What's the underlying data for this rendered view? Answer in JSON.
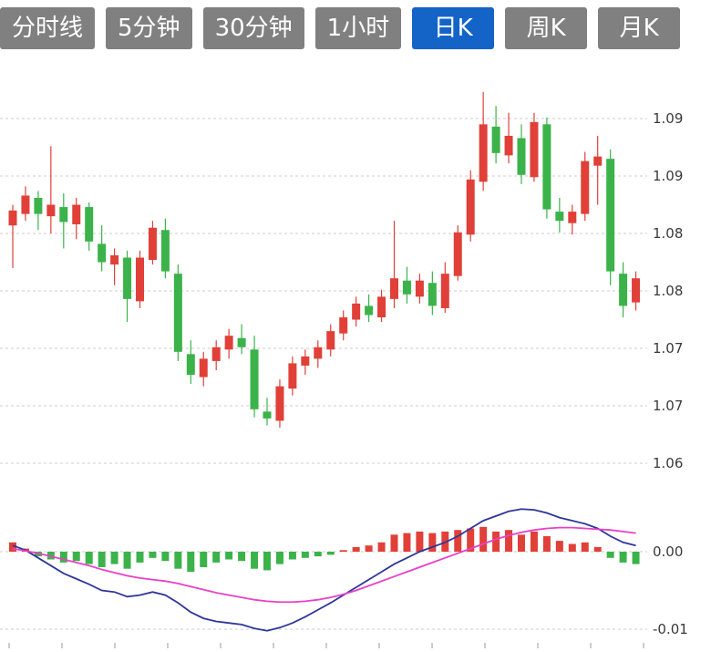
{
  "tabs": {
    "items": [
      {
        "label": "分时线",
        "active": false
      },
      {
        "label": "5分钟",
        "active": false
      },
      {
        "label": "30分钟",
        "active": false
      },
      {
        "label": "1小时",
        "active": false
      },
      {
        "label": "日K",
        "active": true
      },
      {
        "label": "周K",
        "active": false
      },
      {
        "label": "月K",
        "active": false
      }
    ]
  },
  "colors": {
    "tab_bg": "#808080",
    "tab_active_bg": "#1464c8",
    "tab_text": "#ffffff",
    "up": "#e04038",
    "down": "#3bb34a",
    "dif_line": "#2f3699",
    "dea_line": "#e840c8",
    "grid": "#cccccc",
    "axis_text": "#3a3a3a",
    "background": "#ffffff"
  },
  "chart_data": {
    "type": "candlestick",
    "indicator": "MACD",
    "title": "",
    "xlabel": "",
    "ylabel": "",
    "grid": true,
    "legend": "none",
    "candle_columns": [
      "open",
      "high",
      "low",
      "close"
    ],
    "candles": [
      [
        1.0832,
        1.085,
        1.0795,
        1.0845
      ],
      [
        1.0842,
        1.0866,
        1.0836,
        1.0858
      ],
      [
        1.0856,
        1.0862,
        1.0828,
        1.0842
      ],
      [
        1.084,
        1.0901,
        1.0825,
        1.085
      ],
      [
        1.0848,
        1.086,
        1.0812,
        1.0835
      ],
      [
        1.0833,
        1.0856,
        1.082,
        1.085
      ],
      [
        1.0848,
        1.0852,
        1.081,
        1.0818
      ],
      [
        1.0816,
        1.0832,
        1.0792,
        1.08
      ],
      [
        1.0798,
        1.0812,
        1.078,
        1.0806
      ],
      [
        1.0804,
        1.081,
        1.0748,
        1.0768
      ],
      [
        1.0766,
        1.081,
        1.076,
        1.0804
      ],
      [
        1.0802,
        1.0836,
        1.0798,
        1.083
      ],
      [
        1.0828,
        1.0838,
        1.0786,
        1.0792
      ],
      [
        1.079,
        1.0798,
        1.0714,
        1.0722
      ],
      [
        1.072,
        1.0732,
        1.0694,
        1.0702
      ],
      [
        1.07,
        1.0722,
        1.0692,
        1.0716
      ],
      [
        1.0714,
        1.0732,
        1.0706,
        1.0726
      ],
      [
        1.0724,
        1.0742,
        1.0716,
        1.0736
      ],
      [
        1.0734,
        1.0746,
        1.072,
        1.0726
      ],
      [
        1.0724,
        1.0736,
        1.0665,
        1.0672
      ],
      [
        1.067,
        1.0682,
        1.0658,
        1.0664
      ],
      [
        1.0662,
        1.0698,
        1.0656,
        1.0692
      ],
      [
        1.069,
        1.0718,
        1.0684,
        1.0712
      ],
      [
        1.071,
        1.0724,
        1.0702,
        1.0718
      ],
      [
        1.0716,
        1.0732,
        1.0708,
        1.0726
      ],
      [
        1.0724,
        1.0746,
        1.0718,
        1.074
      ],
      [
        1.0738,
        1.0758,
        1.0732,
        1.0752
      ],
      [
        1.075,
        1.077,
        1.0744,
        1.0764
      ],
      [
        1.0762,
        1.0772,
        1.0748,
        1.0754
      ],
      [
        1.0752,
        1.0776,
        1.0748,
        1.077
      ],
      [
        1.0768,
        1.0836,
        1.076,
        1.0786
      ],
      [
        1.0784,
        1.0796,
        1.0764,
        1.0772
      ],
      [
        1.077,
        1.079,
        1.0764,
        1.0784
      ],
      [
        1.0782,
        1.0792,
        1.0754,
        1.0762
      ],
      [
        1.076,
        1.08,
        1.0756,
        1.079
      ],
      [
        1.0788,
        1.0832,
        1.0784,
        1.0826
      ],
      [
        1.0824,
        1.088,
        1.0818,
        1.0872
      ],
      [
        1.087,
        1.0948,
        1.0862,
        1.092
      ],
      [
        1.0918,
        1.0936,
        1.0886,
        1.0895
      ],
      [
        1.0893,
        1.093,
        1.0886,
        1.091
      ],
      [
        1.0908,
        1.092,
        1.0868,
        1.0876
      ],
      [
        1.0874,
        1.093,
        1.087,
        1.0922
      ],
      [
        1.092,
        1.0926,
        1.0838,
        1.0846
      ],
      [
        1.0844,
        1.0856,
        1.0826,
        1.0836
      ],
      [
        1.0834,
        1.085,
        1.0824,
        1.0844
      ],
      [
        1.0842,
        1.0896,
        1.0836,
        1.0888
      ],
      [
        1.0884,
        1.091,
        1.085,
        1.0892
      ],
      [
        1.089,
        1.0898,
        1.078,
        1.0792
      ],
      [
        1.079,
        1.08,
        1.0752,
        1.0762
      ],
      [
        1.0765,
        1.0792,
        1.0758,
        1.0786
      ]
    ],
    "price_axis": {
      "position": "right",
      "range": [
        1.06,
        1.098
      ],
      "gridlines": [
        {
          "value": 1.0925,
          "label": "1.09"
        },
        {
          "value": 1.0875,
          "label": "1.09"
        },
        {
          "value": 1.0825,
          "label": "1.08"
        },
        {
          "value": 1.0775,
          "label": "1.08"
        },
        {
          "value": 1.0725,
          "label": "1.07"
        },
        {
          "value": 1.0675,
          "label": "1.07"
        },
        {
          "value": 1.0625,
          "label": "1.06"
        }
      ]
    },
    "macd": {
      "range": [
        -0.0115,
        0.0075
      ],
      "axis": [
        {
          "value": 0,
          "label": "0.00"
        },
        {
          "value": -0.01,
          "label": "-0.01"
        }
      ],
      "hist": [
        0.0012,
        0.0004,
        -0.0006,
        -0.001,
        -0.0014,
        -0.0012,
        -0.0016,
        -0.002,
        -0.0016,
        -0.0022,
        -0.0014,
        -0.0008,
        -0.0012,
        -0.0022,
        -0.0026,
        -0.002,
        -0.0014,
        -0.001,
        -0.0012,
        -0.0022,
        -0.0024,
        -0.0016,
        -0.001,
        -0.0008,
        -0.0006,
        -0.0004,
        0.0002,
        0.0006,
        0.0008,
        0.0012,
        0.0022,
        0.0024,
        0.0026,
        0.0024,
        0.0026,
        0.0028,
        0.003,
        0.0032,
        0.0026,
        0.0028,
        0.0022,
        0.0026,
        0.002,
        0.0014,
        0.001,
        0.0012,
        0.0006,
        -0.0008,
        -0.0014,
        -0.0016
      ],
      "dif": [
        0.0008,
        0.0002,
        -0.0008,
        -0.0018,
        -0.0028,
        -0.0035,
        -0.0042,
        -0.005,
        -0.0052,
        -0.0058,
        -0.0056,
        -0.0052,
        -0.0056,
        -0.0066,
        -0.0078,
        -0.0086,
        -0.009,
        -0.0092,
        -0.0094,
        -0.0099,
        -0.0102,
        -0.0098,
        -0.0092,
        -0.0084,
        -0.0075,
        -0.0066,
        -0.0056,
        -0.0046,
        -0.0036,
        -0.0026,
        -0.0016,
        -0.0008,
        0.0,
        0.0006,
        0.0012,
        0.002,
        0.003,
        0.004,
        0.0046,
        0.0052,
        0.0055,
        0.0054,
        0.005,
        0.0044,
        0.004,
        0.0036,
        0.003,
        0.002,
        0.0012,
        0.0008
      ],
      "dea": [
        0.0004,
        0.0001,
        -0.0002,
        -0.0006,
        -0.001,
        -0.0014,
        -0.0018,
        -0.0023,
        -0.0027,
        -0.0031,
        -0.0034,
        -0.0036,
        -0.0038,
        -0.0041,
        -0.0045,
        -0.0049,
        -0.0053,
        -0.0056,
        -0.0059,
        -0.0062,
        -0.0064,
        -0.0065,
        -0.0065,
        -0.0064,
        -0.0062,
        -0.0059,
        -0.0055,
        -0.005,
        -0.0044,
        -0.0038,
        -0.0032,
        -0.0026,
        -0.002,
        -0.0014,
        -0.0008,
        -0.0002,
        0.0004,
        0.001,
        0.0016,
        0.0021,
        0.0025,
        0.0028,
        0.003,
        0.0031,
        0.0031,
        0.003,
        0.0029,
        0.0028,
        0.0026,
        0.0024
      ]
    }
  }
}
